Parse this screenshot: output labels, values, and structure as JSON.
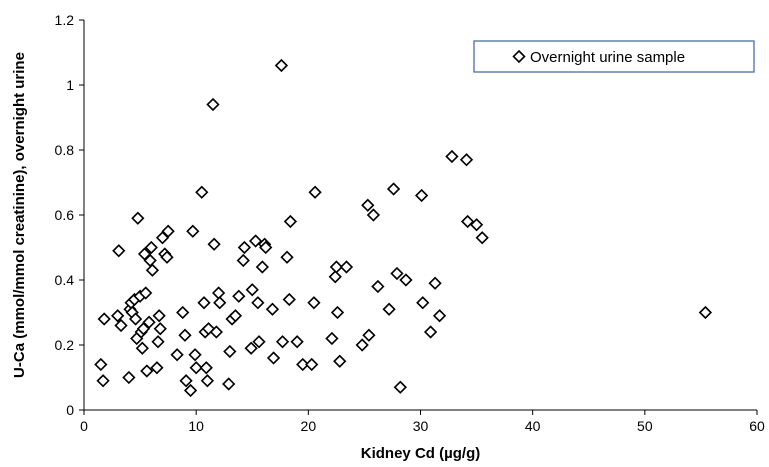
{
  "chart_data": {
    "type": "scatter",
    "xlabel": "Kidney Cd (µg/g)",
    "ylabel": "U-Ca (mmol/mmol creatinine), overnight urine",
    "xlim": [
      0,
      60
    ],
    "ylim": [
      0,
      1.2
    ],
    "x_ticks": [
      "0",
      "10",
      "20",
      "30",
      "40",
      "50",
      "60"
    ],
    "y_ticks": [
      "0",
      "0.2",
      "0.4",
      "0.6",
      "0.8",
      "1",
      "1.2"
    ],
    "grid": false,
    "legend_position": "top-right",
    "marker": "diamond",
    "marker_color": "#000000",
    "legend_border_color": "#4a6fa5",
    "series": [
      {
        "name": "Overnight urine sample",
        "points": [
          [
            1.5,
            0.14
          ],
          [
            1.7,
            0.09
          ],
          [
            1.8,
            0.28
          ],
          [
            3.0,
            0.29
          ],
          [
            3.1,
            0.49
          ],
          [
            3.3,
            0.26
          ],
          [
            4.0,
            0.1
          ],
          [
            4.1,
            0.31
          ],
          [
            4.2,
            0.33
          ],
          [
            4.3,
            0.3
          ],
          [
            4.5,
            0.34
          ],
          [
            4.6,
            0.28
          ],
          [
            4.7,
            0.22
          ],
          [
            4.8,
            0.59
          ],
          [
            5.0,
            0.35
          ],
          [
            5.1,
            0.24
          ],
          [
            5.2,
            0.19
          ],
          [
            5.3,
            0.25
          ],
          [
            5.4,
            0.48
          ],
          [
            5.5,
            0.36
          ],
          [
            5.6,
            0.12
          ],
          [
            5.8,
            0.27
          ],
          [
            5.9,
            0.46
          ],
          [
            6.0,
            0.5
          ],
          [
            6.1,
            0.43
          ],
          [
            6.5,
            0.13
          ],
          [
            6.6,
            0.21
          ],
          [
            6.7,
            0.29
          ],
          [
            6.8,
            0.25
          ],
          [
            7.0,
            0.53
          ],
          [
            7.2,
            0.48
          ],
          [
            7.4,
            0.47
          ],
          [
            7.5,
            0.55
          ],
          [
            8.3,
            0.17
          ],
          [
            8.8,
            0.3
          ],
          [
            9.0,
            0.23
          ],
          [
            9.1,
            0.09
          ],
          [
            9.5,
            0.06
          ],
          [
            9.7,
            0.55
          ],
          [
            9.9,
            0.17
          ],
          [
            10.0,
            0.13
          ],
          [
            10.5,
            0.67
          ],
          [
            10.7,
            0.33
          ],
          [
            10.8,
            0.24
          ],
          [
            10.9,
            0.13
          ],
          [
            11.0,
            0.09
          ],
          [
            11.1,
            0.25
          ],
          [
            11.5,
            0.94
          ],
          [
            11.6,
            0.51
          ],
          [
            11.8,
            0.24
          ],
          [
            12.0,
            0.36
          ],
          [
            12.1,
            0.33
          ],
          [
            12.9,
            0.08
          ],
          [
            13.0,
            0.18
          ],
          [
            13.2,
            0.28
          ],
          [
            13.5,
            0.29
          ],
          [
            13.8,
            0.35
          ],
          [
            14.2,
            0.46
          ],
          [
            14.3,
            0.5
          ],
          [
            14.9,
            0.19
          ],
          [
            15.0,
            0.37
          ],
          [
            15.3,
            0.52
          ],
          [
            15.5,
            0.33
          ],
          [
            15.6,
            0.21
          ],
          [
            15.9,
            0.44
          ],
          [
            16.1,
            0.51
          ],
          [
            16.2,
            0.5
          ],
          [
            16.8,
            0.31
          ],
          [
            16.9,
            0.16
          ],
          [
            17.6,
            1.06
          ],
          [
            17.7,
            0.21
          ],
          [
            18.1,
            0.47
          ],
          [
            18.3,
            0.34
          ],
          [
            18.4,
            0.58
          ],
          [
            19.0,
            0.21
          ],
          [
            19.5,
            0.14
          ],
          [
            20.3,
            0.14
          ],
          [
            20.5,
            0.33
          ],
          [
            20.6,
            0.67
          ],
          [
            22.1,
            0.22
          ],
          [
            22.4,
            0.41
          ],
          [
            22.5,
            0.44
          ],
          [
            22.6,
            0.3
          ],
          [
            22.8,
            0.15
          ],
          [
            23.4,
            0.44
          ],
          [
            24.8,
            0.2
          ],
          [
            25.3,
            0.63
          ],
          [
            25.4,
            0.23
          ],
          [
            25.8,
            0.6
          ],
          [
            26.2,
            0.38
          ],
          [
            27.2,
            0.31
          ],
          [
            27.6,
            0.68
          ],
          [
            27.9,
            0.42
          ],
          [
            28.2,
            0.07
          ],
          [
            28.7,
            0.4
          ],
          [
            30.1,
            0.66
          ],
          [
            30.2,
            0.33
          ],
          [
            30.9,
            0.24
          ],
          [
            31.3,
            0.39
          ],
          [
            31.7,
            0.29
          ],
          [
            32.8,
            0.78
          ],
          [
            34.1,
            0.77
          ],
          [
            34.2,
            0.58
          ],
          [
            35.0,
            0.57
          ],
          [
            35.5,
            0.53
          ],
          [
            55.4,
            0.3
          ]
        ]
      }
    ]
  }
}
